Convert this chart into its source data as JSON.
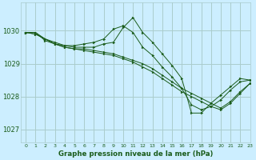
{
  "title": "Graphe pression niveau de la mer (hPa)",
  "background_color": "#cceeff",
  "grid_color": "#aacccc",
  "line_color": "#1a5c1a",
  "marker_color": "#1a5c1a",
  "xlim": [
    -0.5,
    23
  ],
  "ylim": [
    1026.6,
    1030.85
  ],
  "yticks": [
    1027,
    1028,
    1029,
    1030
  ],
  "xticks": [
    0,
    1,
    2,
    3,
    4,
    5,
    6,
    7,
    8,
    9,
    10,
    11,
    12,
    13,
    14,
    15,
    16,
    17,
    18,
    19,
    20,
    21,
    22,
    23
  ],
  "series": [
    [
      1029.95,
      1029.95,
      1029.7,
      1029.6,
      1029.55,
      1029.55,
      1029.6,
      1029.65,
      1029.75,
      1030.05,
      1030.15,
      1029.95,
      1029.5,
      1029.25,
      1028.9,
      1028.6,
      1028.25,
      1027.75,
      1027.6,
      1027.7,
      1027.9,
      1028.2,
      1028.45,
      1028.5
    ],
    [
      1029.95,
      1029.95,
      1029.75,
      1029.65,
      1029.55,
      1029.5,
      1029.5,
      1029.5,
      1029.6,
      1029.65,
      1030.1,
      1030.4,
      1029.95,
      1029.65,
      1029.3,
      1028.95,
      1028.55,
      1027.5,
      1027.5,
      1027.8,
      1028.05,
      1028.3,
      1028.55,
      1028.5
    ],
    [
      1029.95,
      1029.9,
      1029.75,
      1029.6,
      1029.5,
      1029.45,
      1029.45,
      1029.4,
      1029.35,
      1029.3,
      1029.2,
      1029.1,
      1029.0,
      1028.85,
      1028.65,
      1028.45,
      1028.25,
      1028.1,
      1027.95,
      1027.8,
      1027.65,
      1027.85,
      1028.15,
      1028.4
    ],
    [
      1029.95,
      1029.9,
      1029.75,
      1029.6,
      1029.5,
      1029.45,
      1029.4,
      1029.35,
      1029.3,
      1029.25,
      1029.15,
      1029.05,
      1028.9,
      1028.75,
      1028.55,
      1028.35,
      1028.15,
      1028.0,
      1027.85,
      1027.7,
      1027.6,
      1027.8,
      1028.1,
      1028.4
    ]
  ]
}
